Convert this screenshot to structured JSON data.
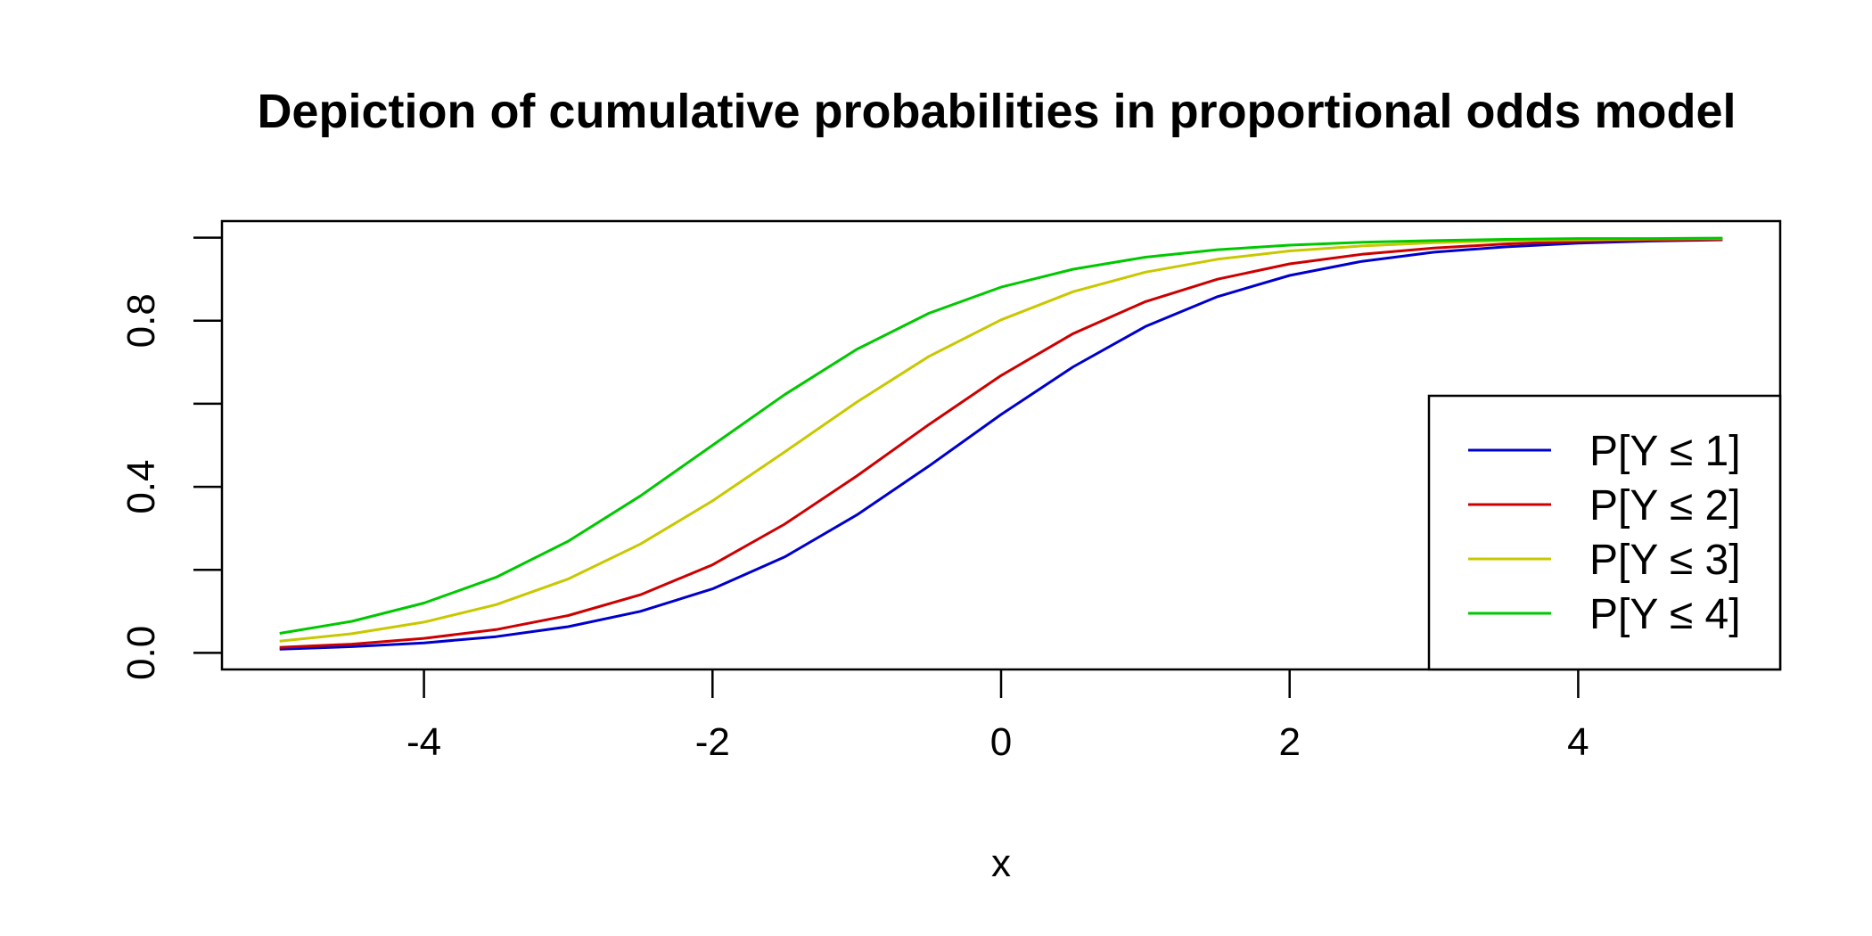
{
  "chart_data": {
    "type": "line",
    "title": "Depiction of cumulative probabilities in proportional odds model",
    "xlabel": "x",
    "ylabel": "",
    "xlim": [
      -5.4,
      5.4
    ],
    "ylim": [
      -0.04,
      1.04
    ],
    "xticks": [
      -4,
      -2,
      0,
      2,
      4
    ],
    "xtick_labels": [
      "-4",
      "-2",
      "0",
      "2",
      "4"
    ],
    "yticks": [
      0,
      0.2,
      0.4,
      0.6,
      0.8,
      1.0
    ],
    "ytick_labels": [
      "0.0",
      "",
      "0.4",
      "",
      "0.8",
      ""
    ],
    "grid": false,
    "legend_position": "bottom-right",
    "x": [
      -5,
      -4.5,
      -4,
      -3.5,
      -3,
      -2.5,
      -2,
      -1.5,
      -1,
      -0.5,
      0,
      0.5,
      1,
      1.5,
      2,
      2.5,
      3,
      3.5,
      4,
      4.5,
      5
    ],
    "series": [
      {
        "name": "P[Y ≤ 1]",
        "color": "#0000cc",
        "values": [
          0.009,
          0.015,
          0.024,
          0.039,
          0.063,
          0.1,
          0.154,
          0.231,
          0.332,
          0.45,
          0.574,
          0.689,
          0.786,
          0.858,
          0.909,
          0.943,
          0.965,
          0.978,
          0.987,
          0.992,
          0.995
        ]
      },
      {
        "name": "P[Y ≤ 2]",
        "color": "#cc0000",
        "values": [
          0.013,
          0.021,
          0.035,
          0.056,
          0.09,
          0.14,
          0.212,
          0.31,
          0.426,
          0.55,
          0.668,
          0.769,
          0.846,
          0.9,
          0.937,
          0.96,
          0.975,
          0.985,
          0.991,
          0.994,
          0.996
        ]
      },
      {
        "name": "P[Y ≤ 3]",
        "color": "#c8c800",
        "values": [
          0.028,
          0.046,
          0.074,
          0.116,
          0.178,
          0.262,
          0.366,
          0.484,
          0.604,
          0.714,
          0.802,
          0.87,
          0.917,
          0.948,
          0.968,
          0.98,
          0.988,
          0.993,
          0.995,
          0.997,
          0.998
        ]
      },
      {
        "name": "P[Y ≤ 4]",
        "color": "#00c800",
        "values": [
          0.047,
          0.076,
          0.12,
          0.182,
          0.269,
          0.378,
          0.5,
          0.622,
          0.731,
          0.818,
          0.881,
          0.924,
          0.953,
          0.971,
          0.982,
          0.989,
          0.993,
          0.996,
          0.998,
          0.998,
          0.999
        ]
      }
    ]
  }
}
